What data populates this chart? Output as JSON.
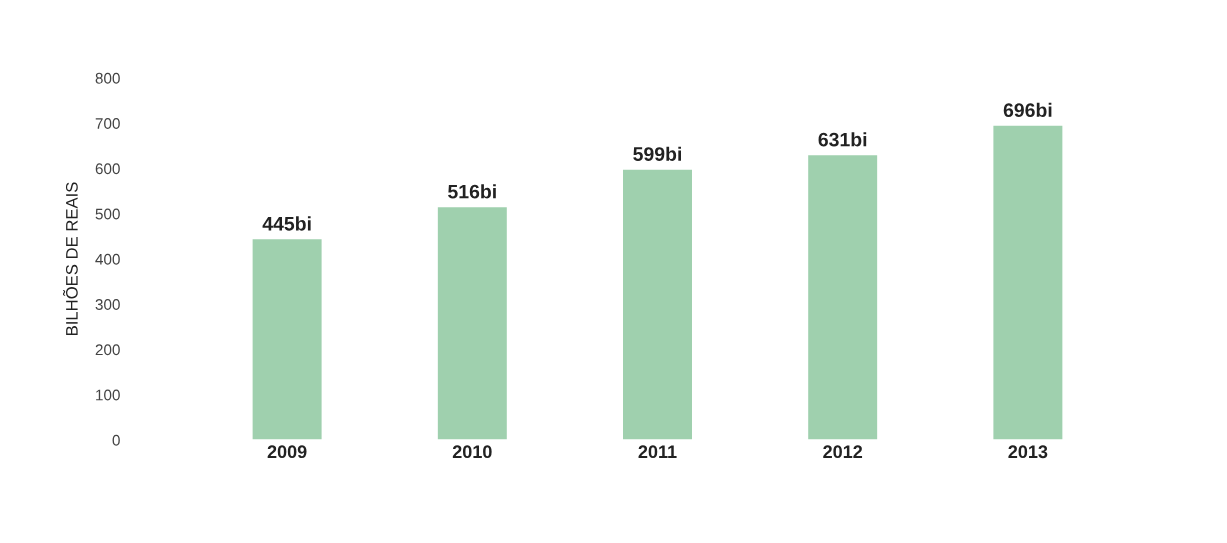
{
  "chart_data": {
    "type": "bar",
    "ylabel": "BILHÕES DE REAIS",
    "categories": [
      "2009",
      "2010",
      "2011",
      "2012",
      "2013"
    ],
    "values": [
      445,
      516,
      599,
      631,
      696
    ],
    "value_labels": [
      "445bi",
      "516bi",
      "599bi",
      "631bi",
      "696bi"
    ],
    "color": "#9fd0ae",
    "ylim": [
      0,
      800
    ],
    "yticks": [
      0,
      100,
      200,
      300,
      400,
      500,
      600,
      700,
      800
    ],
    "grid": false
  }
}
